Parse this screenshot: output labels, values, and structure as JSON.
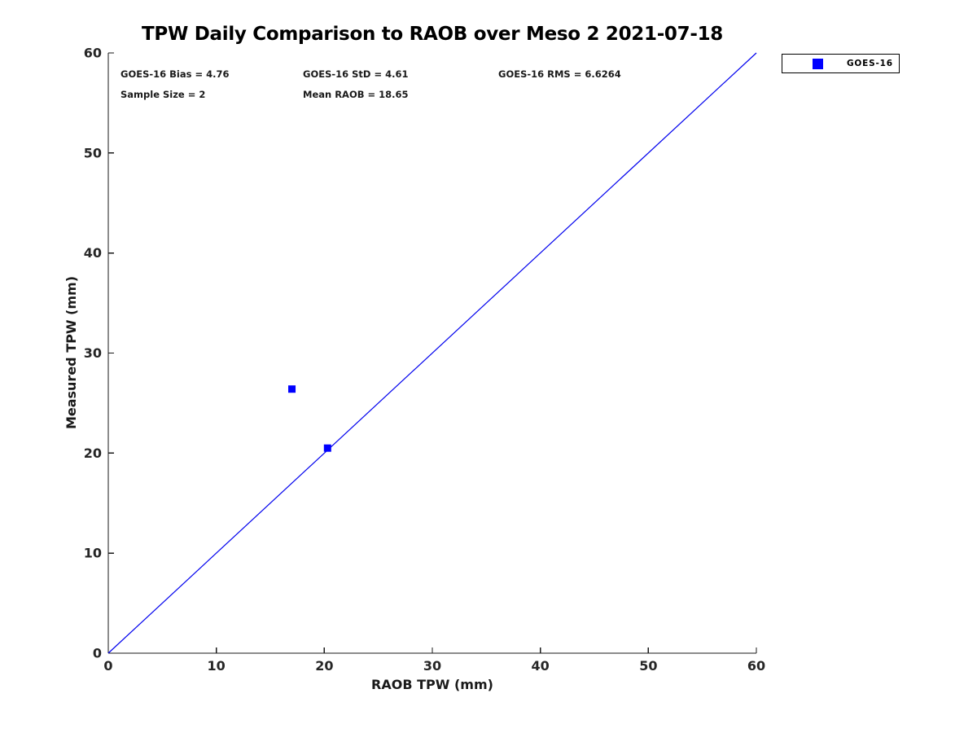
{
  "figure": {
    "background": "#ffffff",
    "axis_color": "#1a1a1a",
    "tick_label_color": "#262626"
  },
  "chart_data": {
    "type": "scatter",
    "title": "TPW Daily Comparison to RAOB over Meso 2 2021-07-18",
    "xlabel": "RAOB TPW (mm)",
    "ylabel": "Measured TPW (mm)",
    "xlim": [
      0,
      60
    ],
    "ylim": [
      0,
      60
    ],
    "x_ticks": [
      0,
      10,
      20,
      30,
      40,
      50,
      60
    ],
    "y_ticks": [
      0,
      10,
      20,
      30,
      40,
      50,
      60
    ],
    "grid": false,
    "legend": {
      "position": "outside-top-right",
      "entries": [
        {
          "label": "GOES-16",
          "marker": "square",
          "color": "#0000ff"
        }
      ]
    },
    "series": [
      {
        "name": "GOES-16",
        "marker": "square",
        "marker_size": 9,
        "color": "#0000ff",
        "points": [
          {
            "x": 17.0,
            "y": 26.4
          },
          {
            "x": 20.3,
            "y": 20.5
          }
        ]
      }
    ],
    "reference_line": {
      "name": "identity-line",
      "color": "#0000ee",
      "from": [
        0,
        0
      ],
      "to": [
        60,
        60
      ]
    },
    "annotations": {
      "bias": "GOES-16 Bias = 4.76",
      "std": "GOES-16 StD = 4.61",
      "rms": "GOES-16 RMS = 6.6264",
      "sample_size": "Sample Size = 2",
      "mean_raob": "Mean RAOB = 18.65"
    },
    "stats": {
      "bias": 4.76,
      "std": 4.61,
      "rms": 6.6264,
      "sample_size": 2,
      "mean_raob": 18.65
    }
  }
}
